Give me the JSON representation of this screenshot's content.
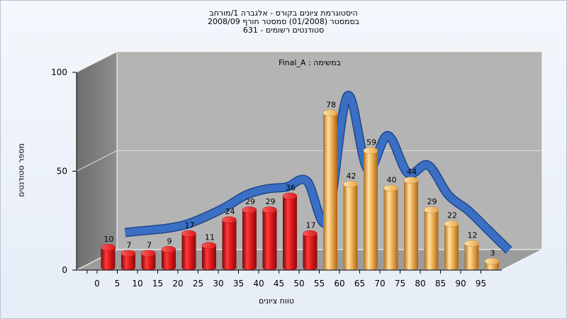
{
  "chart_data": {
    "type": "bar",
    "title_lines": [
      "היסטוגרמת ציונים בקורס - אלגברה 1/מורחב",
      "בסמסטר  (01/2008)  סמסטר חורף  2008/09",
      "סטודנטים רשומים - 631"
    ],
    "annotation": "Final_A : במשימה",
    "xlabel": "טווח ציונים",
    "ylabel": "מספר סטודנטים",
    "ylim": [
      0,
      100
    ],
    "y_ticks": [
      0,
      50,
      100
    ],
    "grid": true,
    "legend": "none",
    "categories": [
      "0",
      "5",
      "10",
      "15",
      "20",
      "25",
      "30",
      "35",
      "40",
      "45",
      "50",
      "55",
      "60",
      "65",
      "70",
      "75",
      "80",
      "85",
      "90",
      "95"
    ],
    "values": [
      10,
      7,
      7,
      9,
      17,
      11,
      24,
      29,
      29,
      36,
      17,
      78,
      42,
      59,
      40,
      44,
      29,
      22,
      12,
      3
    ],
    "bar_colors": {
      "below_55": "#d6151b",
      "from_55": "#e8a847"
    },
    "curve_color": "#3a6fc4",
    "curve_values": [
      14,
      15,
      16,
      18,
      22,
      27,
      33,
      36,
      37,
      40,
      20,
      83,
      46,
      63,
      44,
      48,
      33,
      25,
      15,
      5
    ]
  }
}
